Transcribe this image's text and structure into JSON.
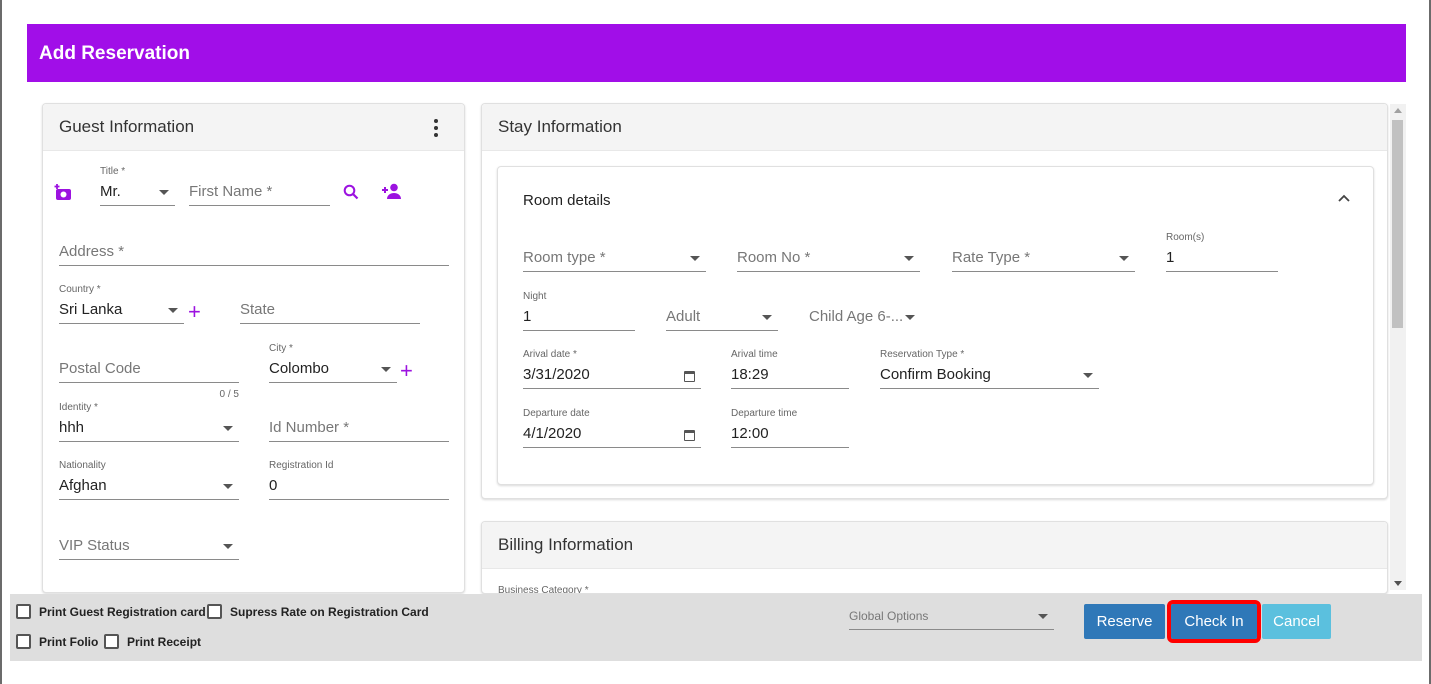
{
  "header": {
    "title": "Add Reservation"
  },
  "guest": {
    "title": "Guest Information",
    "title_field": {
      "label": "Title *",
      "value": "Mr."
    },
    "first_name_placeholder": "First Name *",
    "address_placeholder": "Address *",
    "country": {
      "label": "Country *",
      "value": "Sri Lanka"
    },
    "state_placeholder": "State",
    "postal_code_placeholder": "Postal Code",
    "postal_counter": "0 / 5",
    "city": {
      "label": "City *",
      "value": "Colombo"
    },
    "identity": {
      "label": "Identity *",
      "value": "hhh"
    },
    "id_number_placeholder": "Id Number *",
    "nationality": {
      "label": "Nationality",
      "value": "Afghan"
    },
    "registration": {
      "label": "Registration Id",
      "value": "0"
    },
    "vip_placeholder": "VIP Status"
  },
  "stay": {
    "title": "Stay Information",
    "room_details_title": "Room details",
    "room_type_placeholder": "Room type *",
    "room_no_placeholder": "Room No *",
    "rate_type_placeholder": "Rate Type *",
    "rooms": {
      "label": "Room(s)",
      "value": "1"
    },
    "night": {
      "label": "Night",
      "value": "1"
    },
    "adult_placeholder": "Adult",
    "child_placeholder": "Child Age 6-...",
    "arrival_date": {
      "label": "Arival date *",
      "value": "3/31/2020"
    },
    "arrival_time": {
      "label": "Arival time",
      "value": "18:29"
    },
    "reservation_type": {
      "label": "Reservation Type *",
      "value": "Confirm Booking"
    },
    "departure_date": {
      "label": "Departure date",
      "value": "4/1/2020"
    },
    "departure_time": {
      "label": "Departure time",
      "value": "12:00"
    }
  },
  "billing": {
    "title": "Billing Information",
    "business_category_label": "Business Category *"
  },
  "footer": {
    "print_guest_card": "Print Guest Registration card",
    "supress_rate": "Supress Rate on Registration Card",
    "print_folio": "Print Folio",
    "print_receipt": "Print Receipt",
    "global_options_placeholder": "Global Options",
    "reserve_label": "Reserve",
    "checkin_label": "Check In",
    "cancel_label": "Cancel"
  },
  "colors": {
    "accent": "#a10ee8",
    "primary_button": "#2f78b8",
    "cancel_button": "#5bc0de",
    "highlight": "#ff0000"
  }
}
